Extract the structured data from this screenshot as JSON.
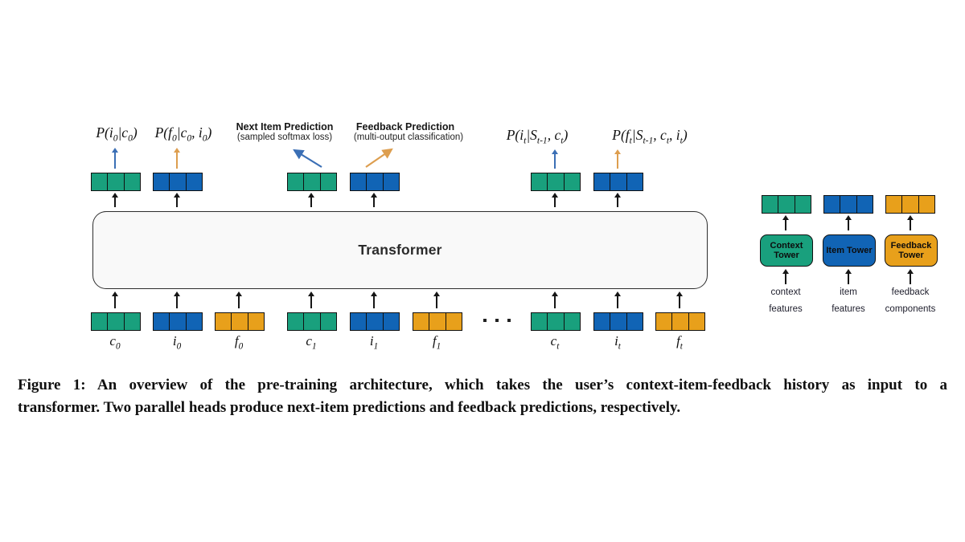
{
  "colors": {
    "context": "#19a07d",
    "item": "#1164b5",
    "feedback": "#e8a01b",
    "arrow_blue": "#3b6fb5",
    "arrow_orange": "#dd9e4f",
    "box_border": "#111111"
  },
  "transformer": {
    "label": "Transformer"
  },
  "heads": {
    "next_item": {
      "title": "Next Item Prediction",
      "subtitle": "(sampled softmax loss)"
    },
    "feedback": {
      "title": "Feedback Prediction",
      "subtitle": "(multi-output classification)"
    }
  },
  "outputs": [
    "P(i_{0}|c_{0})",
    "P(f_{0}|c_{0}, i_{0})",
    "P(i_{t}|S_{t-1}, c_{t})",
    "P(f_{t}|S_{t-1}, c_{t}, i_{t})"
  ],
  "inputs": [
    "c_{0}",
    "i_{0}",
    "f_{0}",
    "c_{1}",
    "i_{1}",
    "f_{1}",
    "c_{t}",
    "i_{t}",
    "f_{t}"
  ],
  "legend": {
    "columns": [
      {
        "tower": "Context Tower",
        "caption": "context features"
      },
      {
        "tower": "Item Tower",
        "caption": "item features"
      },
      {
        "tower": "Feedback Tower",
        "caption": "feedback components"
      }
    ]
  },
  "caption": {
    "line1": "Figure 1: An overview of the pre-training architecture, which takes the user’s context-item-feedback history as input to a",
    "line2": "transformer. Two parallel heads produce next-item predictions and feedback predictions, respectively."
  }
}
